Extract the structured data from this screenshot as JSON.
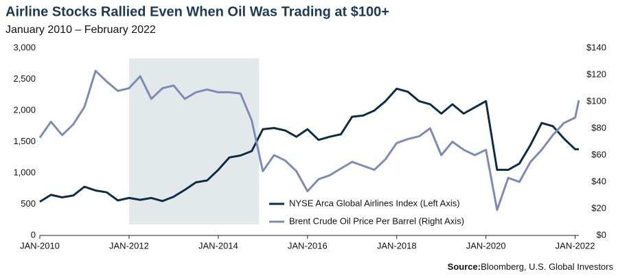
{
  "chart_data": {
    "type": "line",
    "title": "Airline Stocks Rallied Even When Oil Was Trading at $100+",
    "subtitle": "January 2010 – February 2022",
    "source_label": "Source:",
    "source": "Bloomberg, U.S. Global Investors",
    "shaded_range": [
      "2012-01",
      "2014-12"
    ],
    "x": [
      "2010-01",
      "2010-04",
      "2010-07",
      "2010-10",
      "2011-01",
      "2011-04",
      "2011-07",
      "2011-10",
      "2012-01",
      "2012-04",
      "2012-07",
      "2012-10",
      "2013-01",
      "2013-04",
      "2013-07",
      "2013-10",
      "2014-01",
      "2014-04",
      "2014-07",
      "2014-10",
      "2015-01",
      "2015-04",
      "2015-07",
      "2015-10",
      "2016-01",
      "2016-04",
      "2016-07",
      "2016-10",
      "2017-01",
      "2017-04",
      "2017-07",
      "2017-10",
      "2018-01",
      "2018-04",
      "2018-07",
      "2018-10",
      "2019-01",
      "2019-04",
      "2019-07",
      "2019-10",
      "2020-01",
      "2020-04",
      "2020-07",
      "2020-10",
      "2021-01",
      "2021-04",
      "2021-07",
      "2021-10",
      "2022-01",
      "2022-02"
    ],
    "series": [
      {
        "name": "NYSE Arca Global Airlines Index (Left Axis)",
        "color": "#0d2c44",
        "axis": "y",
        "values": [
          540,
          650,
          610,
          640,
          780,
          720,
          690,
          560,
          600,
          570,
          600,
          550,
          620,
          730,
          850,
          880,
          1050,
          1250,
          1280,
          1350,
          1700,
          1720,
          1680,
          1580,
          1700,
          1530,
          1580,
          1620,
          1900,
          1920,
          2000,
          2150,
          2350,
          2300,
          2150,
          2100,
          1950,
          2100,
          1950,
          2050,
          2150,
          1050,
          1050,
          1150,
          1450,
          1800,
          1750,
          1550,
          1380,
          1380
        ]
      },
      {
        "name": "Brent Crude Oil Price Per Barrel (Right Axis)",
        "color": "#7b8bb5",
        "axis": "y2",
        "values": [
          73,
          85,
          75,
          83,
          96,
          123,
          115,
          108,
          110,
          119,
          102,
          110,
          112,
          102,
          107,
          109,
          107,
          107,
          106,
          86,
          48,
          60,
          56,
          48,
          33,
          42,
          45,
          50,
          55,
          52,
          49,
          57,
          69,
          72,
          74,
          80,
          60,
          70,
          64,
          60,
          64,
          19,
          43,
          40,
          55,
          64,
          75,
          84,
          88,
          101
        ]
      }
    ],
    "xlim": [
      "2010-01",
      "2022-02"
    ],
    "xticks": [
      {
        "value": "2010-01",
        "label": "JAN-2010"
      },
      {
        "value": "2012-01",
        "label": "JAN-2012"
      },
      {
        "value": "2014-01",
        "label": "JAN-2014"
      },
      {
        "value": "2016-01",
        "label": "JAN-2016"
      },
      {
        "value": "2018-01",
        "label": "JAN-2018"
      },
      {
        "value": "2020-01",
        "label": "JAN-2020"
      },
      {
        "value": "2022-01",
        "label": "JAN-2022"
      }
    ],
    "ylim": [
      0,
      3000
    ],
    "yticks": [
      0,
      500,
      {
        "value": 1000,
        "label": "1,000"
      },
      {
        "value": 1500,
        "label": "1,500"
      },
      {
        "value": 2000,
        "label": "2,000"
      },
      {
        "value": 2500,
        "label": "2,500"
      },
      {
        "value": 3000,
        "label": "3,000"
      }
    ],
    "y2lim": [
      0,
      140
    ],
    "y2ticks": [
      {
        "value": 0,
        "label": "$0"
      },
      {
        "value": 20,
        "label": "$20"
      },
      {
        "value": 40,
        "label": "$40"
      },
      {
        "value": 60,
        "label": "$60"
      },
      {
        "value": 80,
        "label": "$80"
      },
      {
        "value": 100,
        "label": "$100"
      },
      {
        "value": 120,
        "label": "$120"
      },
      {
        "value": 140,
        "label": "$140"
      }
    ],
    "grid": false
  }
}
